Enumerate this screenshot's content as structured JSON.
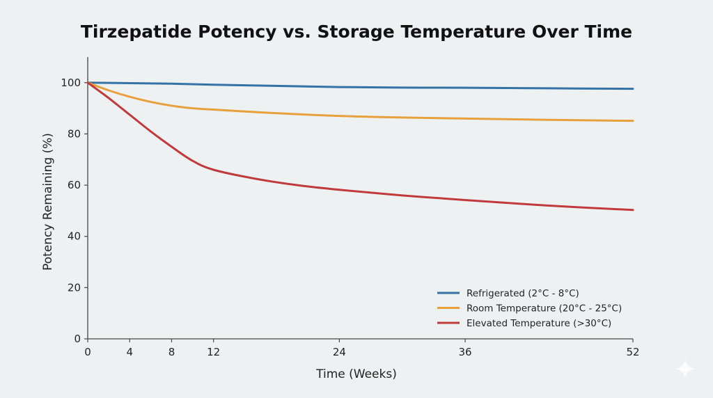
{
  "chart_data": {
    "type": "line",
    "title": "Tirzepatide Potency vs. Storage Temperature Over Time",
    "xlabel": "Time (Weeks)",
    "ylabel": "Potency Remaining (%)",
    "xlim": [
      0,
      52
    ],
    "ylim": [
      0,
      110
    ],
    "xticks": [
      0,
      4,
      8,
      12,
      24,
      36,
      52
    ],
    "yticks": [
      0,
      20,
      40,
      60,
      80,
      100
    ],
    "grid": false,
    "legend_position": "bottom-right",
    "x": [
      0,
      2,
      4,
      6,
      8,
      10,
      12,
      16,
      20,
      24,
      30,
      36,
      44,
      52
    ],
    "series": [
      {
        "name": "Refrigerated (2°C - 8°C)",
        "color": "#3572a5",
        "values": [
          100,
          99.9,
          99.8,
          99.7,
          99.6,
          99.4,
          99.2,
          98.9,
          98.6,
          98.3,
          98.1,
          98.0,
          97.8,
          97.6
        ]
      },
      {
        "name": "Room Temperature (20°C - 25°C)",
        "color": "#e8a03c",
        "values": [
          100,
          97,
          94.5,
          92.5,
          91,
          90,
          89.5,
          88.5,
          87.7,
          87,
          86.4,
          86,
          85.5,
          85.1
        ]
      },
      {
        "name": "Elevated Temperature (>30°C)",
        "color": "#c0393b",
        "values": [
          100,
          94,
          87.5,
          81,
          75,
          69.5,
          66,
          62.5,
          60,
          58.2,
          56,
          54.2,
          52,
          50.3
        ]
      }
    ]
  }
}
